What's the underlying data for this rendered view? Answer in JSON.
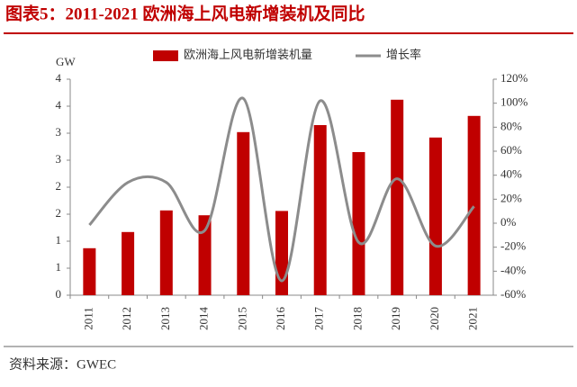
{
  "chart_data": {
    "type": "bar_line",
    "title": "图表5：2011-2021 欧洲海上风电新增装机及同比",
    "y_label": "GW",
    "source": "资料来源：GWEC",
    "categories": [
      "2011",
      "2012",
      "2013",
      "2014",
      "2015",
      "2016",
      "2017",
      "2018",
      "2019",
      "2020",
      "2021"
    ],
    "series": [
      {
        "name": "欧洲海上风电新增装机量",
        "type": "bar",
        "color": "#c00000",
        "values": [
          0.87,
          1.17,
          1.57,
          1.48,
          3.02,
          1.56,
          3.15,
          2.65,
          3.62,
          2.92,
          3.32
        ]
      },
      {
        "name": "增长率",
        "type": "line",
        "axis": "y2",
        "color": "#8c8c8c",
        "smooth": true,
        "values": [
          -1.5,
          34,
          34,
          -6,
          104,
          -48,
          102,
          -16,
          37,
          -19,
          14
        ]
      }
    ],
    "ylim": [
      0,
      4
    ],
    "yticks": [
      0,
      {
        "value": 0.5,
        "label": "1"
      },
      1,
      {
        "value": 1.5,
        "label": "2"
      },
      2,
      {
        "value": 2.5,
        "label": "3"
      },
      3,
      {
        "value": 3.5,
        "label": "4"
      },
      4
    ],
    "y2lim": [
      -60,
      120
    ],
    "y2ticks": [
      {
        "value": -60,
        "label": "-60%"
      },
      {
        "value": -40,
        "label": "-40%"
      },
      {
        "value": -20,
        "label": "-20%"
      },
      {
        "value": 0,
        "label": "0%"
      },
      {
        "value": 20,
        "label": "20%"
      },
      {
        "value": 40,
        "label": "40%"
      },
      {
        "value": 60,
        "label": "60%"
      },
      {
        "value": 80,
        "label": "80%"
      },
      {
        "value": 100,
        "label": "100%"
      },
      {
        "value": 120,
        "label": "120%"
      }
    ],
    "legend": "top"
  }
}
